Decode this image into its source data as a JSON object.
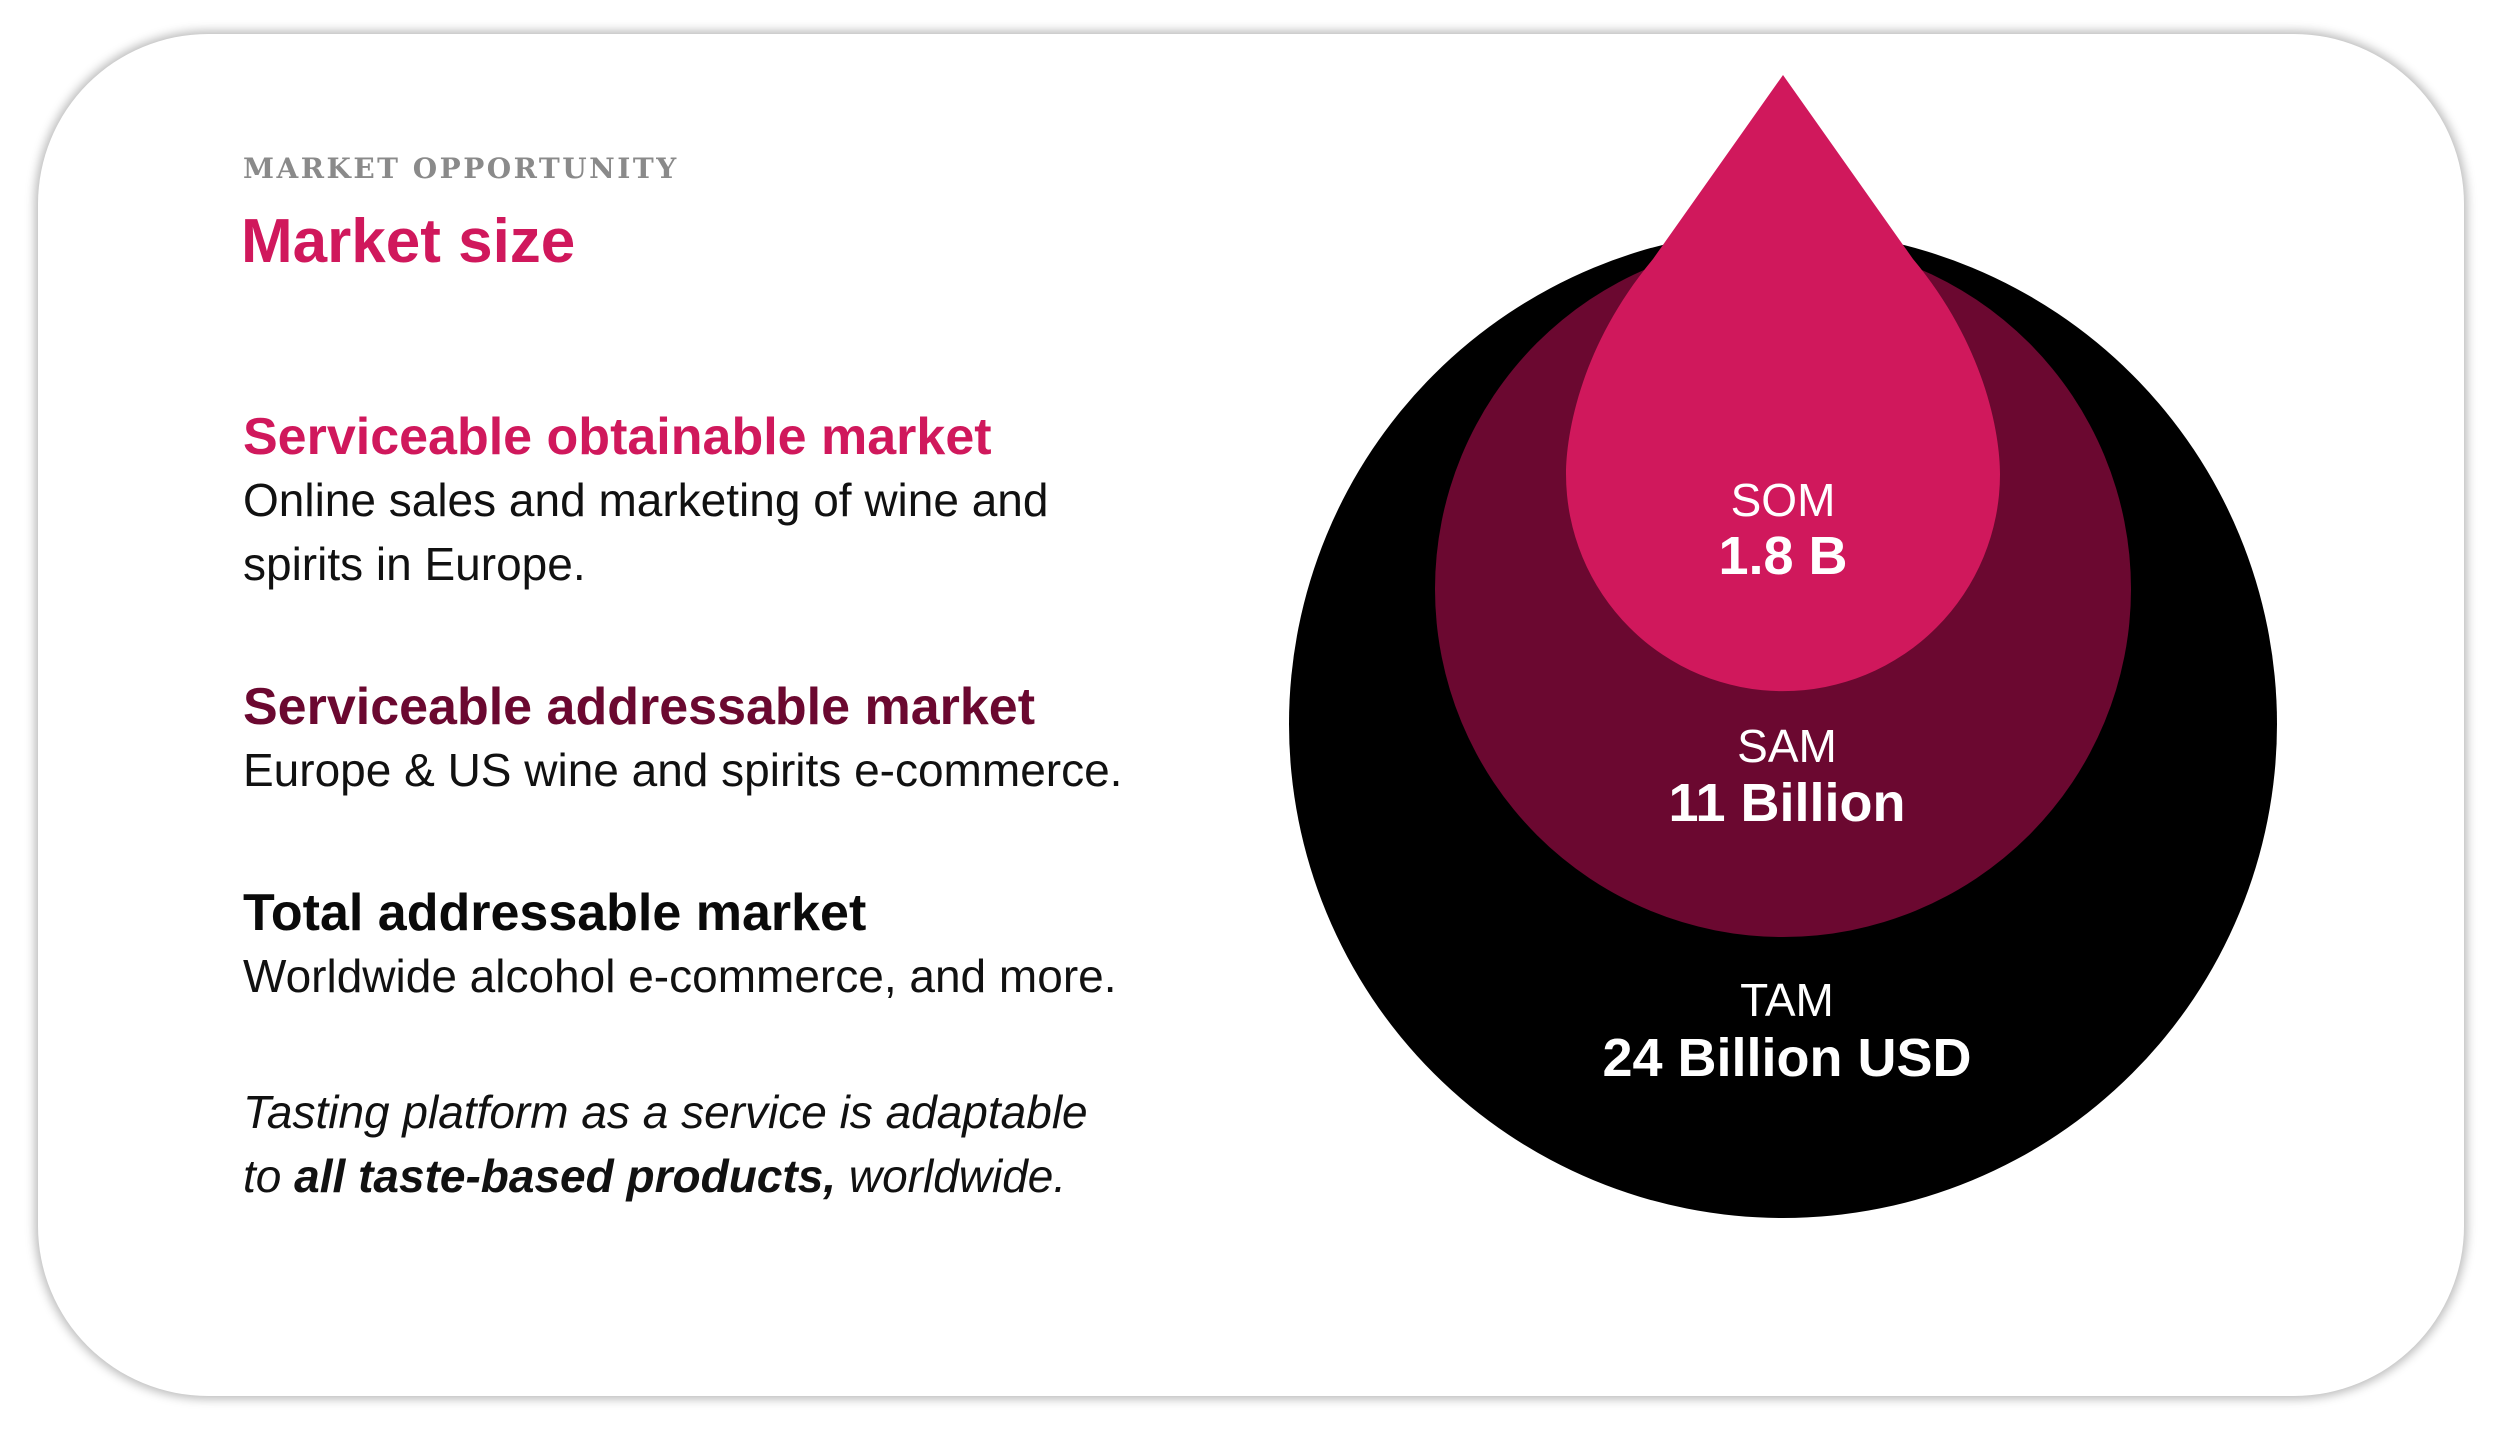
{
  "header": {
    "eyebrow": "MARKET OPPORTUNITY",
    "title": "Market size"
  },
  "segments": {
    "som": {
      "heading": "Serviceable obtainable market",
      "line1": "Online sales and marketing of wine and",
      "line2": "spirits in Europe.",
      "label": "SOM",
      "value": "1.8 B",
      "color": "#d0185c"
    },
    "sam": {
      "heading": "Serviceable addressable market",
      "line1": "Europe & US wine and spirits e-commerce.",
      "label": "SAM",
      "value": "11 Billion",
      "color": "#6b0830"
    },
    "tam": {
      "heading": "Total addressable market",
      "line1": "Worldwide alcohol e-commerce, and more.",
      "label": "TAM",
      "value": "24 Billion USD",
      "color": "#000000"
    }
  },
  "note": {
    "line1": "Tasting platform as a service is adaptable",
    "line2_prefix": "to ",
    "line2_bold": "all taste-based products,",
    "line2_suffix": " worldwide."
  }
}
